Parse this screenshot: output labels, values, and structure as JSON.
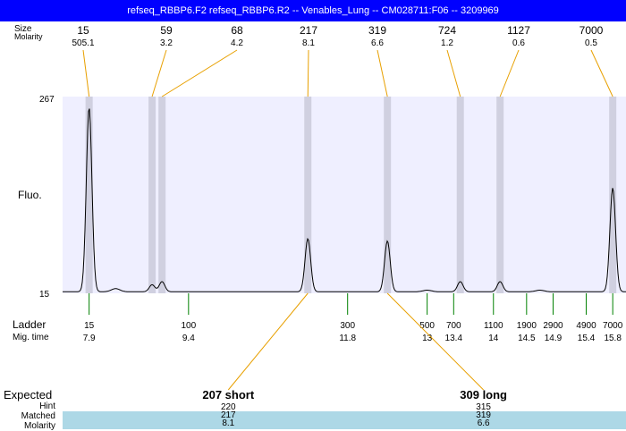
{
  "title": "refseq_RBBP6.F2  refseq_RBBP6.R2 -- Venables_Lung -- CM028711:F06 -- 3209969",
  "top_labels": {
    "size": "Size",
    "molarity": "Molarity"
  },
  "axis": {
    "y_max_label": "267",
    "y_min_label": "15",
    "y_title": "Fluo."
  },
  "ladder_labels": {
    "ladder": "Ladder",
    "mig_time": "Mig. time"
  },
  "bottom_row_labels": {
    "expected": "Expected",
    "hint": "Hint",
    "matched": "Matched",
    "molarity": "Molarity"
  },
  "colors": {
    "title_bar": "#0000ff",
    "plot_bg": "#efefff",
    "marker_band": "#d0d0e0",
    "annotation_line": "#e8a000",
    "ladder_tick": "#008000",
    "matched_band": "#add8e6"
  },
  "chart_data": {
    "type": "line",
    "title": "refseq_RBBP6.F2  refseq_RBBP6.R2 -- Venables_Lung -- CM028711:F06 -- 3209969",
    "ylabel": "Fluo.",
    "ylim": [
      15,
      267
    ],
    "xlim": [
      7.5,
      16.0
    ],
    "x_unit": "Mig. time",
    "peaks": [
      {
        "size": "15",
        "molarity": "505.1",
        "time": 7.9,
        "height": 253
      },
      {
        "size": "59",
        "molarity": "3.2",
        "time": 8.85,
        "height": 26
      },
      {
        "size": "68",
        "molarity": "4.2",
        "time": 9.0,
        "height": 30
      },
      {
        "size": "217",
        "molarity": "8.1",
        "time": 11.2,
        "height": 85
      },
      {
        "size": "319",
        "molarity": "6.6",
        "time": 12.4,
        "height": 82
      },
      {
        "size": "724",
        "molarity": "1.2",
        "time": 13.5,
        "height": 30
      },
      {
        "size": "1127",
        "molarity": "0.6",
        "time": 14.1,
        "height": 30
      },
      {
        "size": "7000",
        "molarity": "0.5",
        "time": 15.8,
        "height": 150
      }
    ],
    "minor_bumps": [
      {
        "time": 8.3,
        "height": 21
      },
      {
        "time": 13.0,
        "height": 19
      },
      {
        "time": 14.7,
        "height": 19
      }
    ],
    "ladder": [
      {
        "size": "15",
        "time": "7.9",
        "t": 7.9
      },
      {
        "size": "100",
        "time": "9.4",
        "t": 9.4
      },
      {
        "size": "300",
        "time": "11.8",
        "t": 11.8
      },
      {
        "size": "500",
        "time": "13",
        "t": 13.0
      },
      {
        "size": "700",
        "time": "13.4",
        "t": 13.4
      },
      {
        "size": "1100",
        "time": "14",
        "t": 14.0
      },
      {
        "size": "1900",
        "time": "14.5",
        "t": 14.5
      },
      {
        "size": "2900",
        "time": "14.9",
        "t": 14.9
      },
      {
        "size": "4900",
        "time": "15.4",
        "t": 15.4
      },
      {
        "size": "7000",
        "time": "15.8",
        "t": 15.8
      }
    ],
    "expected": [
      {
        "label": "207 short",
        "hint": "220",
        "matched": "217",
        "molarity": "8.1",
        "peak_time": 11.2,
        "col_time": 10.0
      },
      {
        "label": "309 long",
        "hint": "315",
        "matched": "319",
        "molarity": "6.6",
        "peak_time": 12.4,
        "col_time": 13.85
      }
    ]
  }
}
